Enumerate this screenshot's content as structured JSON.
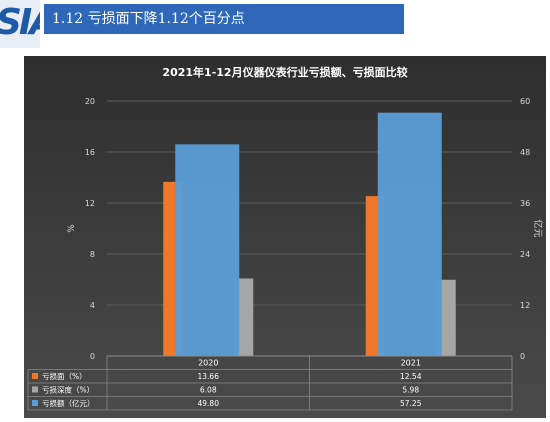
{
  "slide": {
    "logo_text": "SIA",
    "heading": "1.12 亏损面下降1.12个百分点"
  },
  "chart_data": {
    "type": "bar",
    "title": "2021年1-12月仪器仪表行业亏损额、亏损面比较",
    "categories": [
      "2020",
      "2021"
    ],
    "series": [
      {
        "name": "亏损面（%）",
        "axis": "left",
        "values": [
          13.66,
          12.54
        ],
        "display": [
          "13.66",
          "12.54"
        ],
        "color": "#f0782a"
      },
      {
        "name": "亏损深度（%）",
        "axis": "left",
        "values": [
          6.08,
          5.98
        ],
        "display": [
          "6.08",
          "5.98"
        ],
        "color": "#a6a6a6"
      },
      {
        "name": "亏损额（亿元）",
        "axis": "right",
        "values": [
          49.8,
          57.25
        ],
        "display": [
          "49.80",
          "57.25"
        ],
        "color": "#5b9bd5"
      }
    ],
    "ylabel": "%",
    "y2label": "亿元",
    "ylim": [
      0,
      20
    ],
    "y2lim": [
      0,
      60
    ],
    "yticks": [
      "0",
      "4",
      "8",
      "12",
      "16",
      "20"
    ],
    "y2ticks": [
      "0",
      "12",
      "24",
      "36",
      "48",
      "60"
    ],
    "grid": true,
    "legend": "data-table"
  }
}
